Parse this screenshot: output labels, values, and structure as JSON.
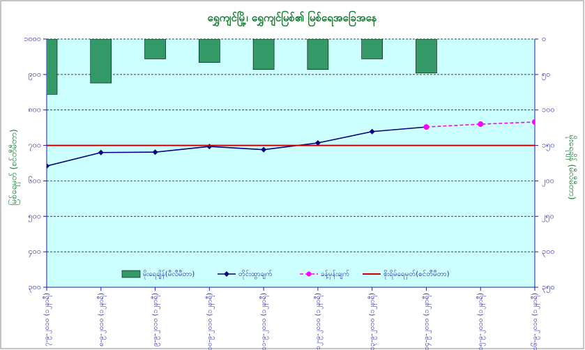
{
  "chart_data": {
    "type": "combo",
    "title": "ရွှေကျင်မြို့၊ ရွှေကျင်မြစ်၏ မြစ်ရေအခြေအနေ",
    "y_label": "မြစ်ရေမှတ် (စင်တီမီတာ)",
    "y2_label": "မိုးရေချိန် (မီလီမီတာ)",
    "categories": [
      "၇-၉-၂၀၁၀ (၁၂နာရီ)",
      "၈-၉-၂၀၁၀ (၁၂နာရီ)",
      "၉-၉-၂၀၁၀ (၁၂နာရီ)",
      "၁၀-၉-၂၀၁၀ (၁၂နာရီ)",
      "၁၁-၉-၂၀၁၀ (၁၂နာရီ)",
      "၁၂-၉-၂၀၁၀ (၁၂နာရီ)",
      "၁၃-၉-၂၀၁၀ (၁၂နာရီ)",
      "၁၄-၉-၂၀၁၀ (၁၂နာရီ)",
      "၁၅-၉-၂၀၁၀ (၁၂နာရီ)",
      "၁၆-၉-၂၀၁၀ (၁၂နာရီ)"
    ],
    "ylim": [
      300,
      1000
    ],
    "yticks": [
      {
        "value": 300,
        "label": "၃၀၀"
      },
      {
        "value": 400,
        "label": "၄၀၀"
      },
      {
        "value": 500,
        "label": "၅၀၀"
      },
      {
        "value": 600,
        "label": "၆၀၀"
      },
      {
        "value": 700,
        "label": "၇၀၀"
      },
      {
        "value": 800,
        "label": "၈၀၀"
      },
      {
        "value": 900,
        "label": "၉၀၀"
      },
      {
        "value": 1000,
        "label": "၁၀၀၀"
      }
    ],
    "y2lim": [
      350,
      0
    ],
    "y2ticks": [
      {
        "value": 0,
        "label": "၀"
      },
      {
        "value": 50,
        "label": "၅၀"
      },
      {
        "value": 100,
        "label": "၁၀၀"
      },
      {
        "value": 150,
        "label": "၁၅၀"
      },
      {
        "value": 200,
        "label": "၂၀၀"
      },
      {
        "value": 250,
        "label": "၂၅၀"
      },
      {
        "value": 300,
        "label": "၃၀၀"
      },
      {
        "value": 350,
        "label": "၃၅၀"
      }
    ],
    "grid": true,
    "series": [
      {
        "name": "မိုးရေချိန်(မီလီမီတာ)",
        "kind": "bar",
        "axis": "y2",
        "color": "#339966",
        "values": [
          78,
          62,
          28,
          33,
          43,
          43,
          28,
          48,
          null,
          null
        ]
      },
      {
        "name": "တိုင်းထွာချက်",
        "kind": "line",
        "color": "#000080",
        "values": [
          642,
          680,
          681,
          697,
          688,
          707,
          739,
          752,
          null,
          null
        ]
      },
      {
        "name": "ခန့်မှန်းချက်",
        "kind": "dashed",
        "color": "#ff00ff",
        "values": [
          null,
          null,
          null,
          null,
          null,
          null,
          null,
          752,
          760,
          766
        ]
      }
    ],
    "threshold": {
      "name": "စိုးရိမ်ရေမှတ်(စင်တီမီတာ)",
      "value": 700,
      "color": "#cc0000"
    }
  }
}
